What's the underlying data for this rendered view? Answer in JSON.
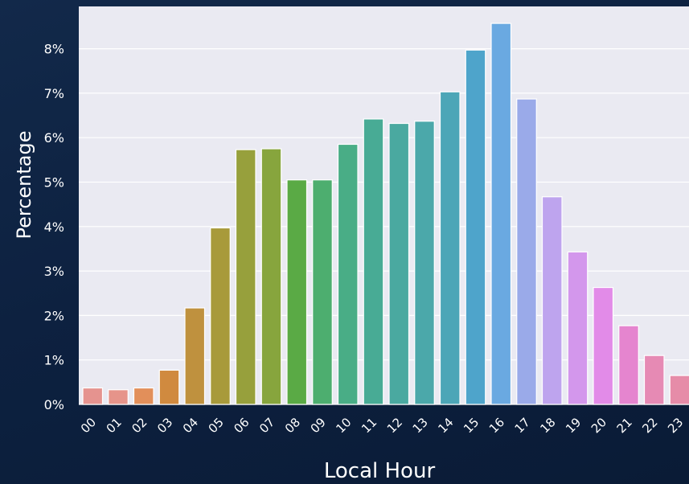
{
  "chart_data": {
    "type": "bar",
    "title": "",
    "xlabel": "Local Hour",
    "ylabel": "Percentage",
    "categories": [
      "00",
      "01",
      "02",
      "03",
      "04",
      "05",
      "06",
      "07",
      "08",
      "09",
      "10",
      "11",
      "12",
      "13",
      "14",
      "15",
      "16",
      "17",
      "18",
      "19",
      "20",
      "21",
      "22",
      "23"
    ],
    "values": [
      0.37,
      0.33,
      0.37,
      0.77,
      2.17,
      3.97,
      5.73,
      5.75,
      5.05,
      5.05,
      5.85,
      6.42,
      6.32,
      6.37,
      7.03,
      7.97,
      8.57,
      6.87,
      4.67,
      3.43,
      2.63,
      1.77,
      1.1,
      0.65
    ],
    "ylim": [
      0,
      9
    ],
    "yticks": [
      0,
      1,
      2,
      3,
      4,
      5,
      6,
      7,
      8
    ],
    "ytick_labels": [
      "0%",
      "1%",
      "2%",
      "3%",
      "4%",
      "5%",
      "6%",
      "7%",
      "8%"
    ],
    "grid": true,
    "colors": [
      "#e5938f",
      "#e6948a",
      "#e28f5a",
      "#d08a3f",
      "#bf913e",
      "#a89a3b",
      "#97a03c",
      "#87a53d",
      "#5aaa45",
      "#4dae6f",
      "#49ad86",
      "#48ab95",
      "#4aa9a0",
      "#4ba8aa",
      "#4ca6b7",
      "#4ea4cb",
      "#6aa9e1",
      "#9aaae9",
      "#bea4ee",
      "#d397ec",
      "#e28be8",
      "#e585cf",
      "#e68ab4",
      "#e68ca8"
    ],
    "plot_background": "#eaeaf2",
    "gridline_color": "#ffffff"
  }
}
